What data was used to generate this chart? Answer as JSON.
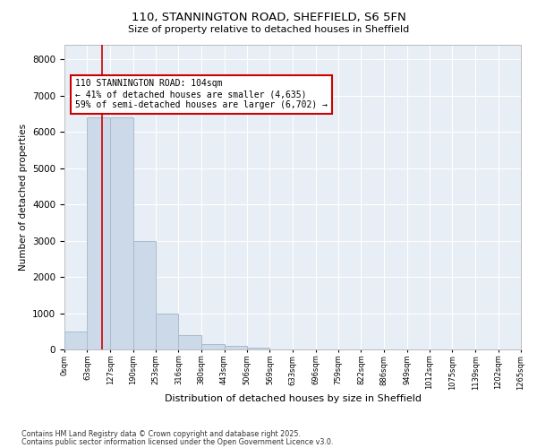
{
  "title1": "110, STANNINGTON ROAD, SHEFFIELD, S6 5FN",
  "title2": "Size of property relative to detached houses in Sheffield",
  "xlabel": "Distribution of detached houses by size in Sheffield",
  "ylabel": "Number of detached properties",
  "bar_color": "#ccd9e8",
  "bar_edge_color": "#aabbcc",
  "background_color": "#e8eef5",
  "vline_x": 104,
  "vline_color": "#cc0000",
  "annotation_text": "110 STANNINGTON ROAD: 104sqm\n← 41% of detached houses are smaller (4,635)\n59% of semi-detached houses are larger (6,702) →",
  "annotation_box_color": "#ffffff",
  "annotation_border_color": "#cc0000",
  "bin_edges": [
    0,
    63,
    127,
    190,
    253,
    316,
    380,
    443,
    506,
    569,
    633,
    696,
    759,
    822,
    886,
    949,
    1012,
    1075,
    1139,
    1202,
    1265
  ],
  "bar_heights": [
    500,
    6400,
    6400,
    3000,
    1000,
    400,
    150,
    100,
    50,
    10,
    5,
    3,
    2,
    1,
    1,
    0,
    0,
    0,
    0,
    0
  ],
  "ylim": [
    0,
    8400
  ],
  "yticks": [
    0,
    1000,
    2000,
    3000,
    4000,
    5000,
    6000,
    7000,
    8000
  ],
  "footer1": "Contains HM Land Registry data © Crown copyright and database right 2025.",
  "footer2": "Contains public sector information licensed under the Open Government Licence v3.0."
}
